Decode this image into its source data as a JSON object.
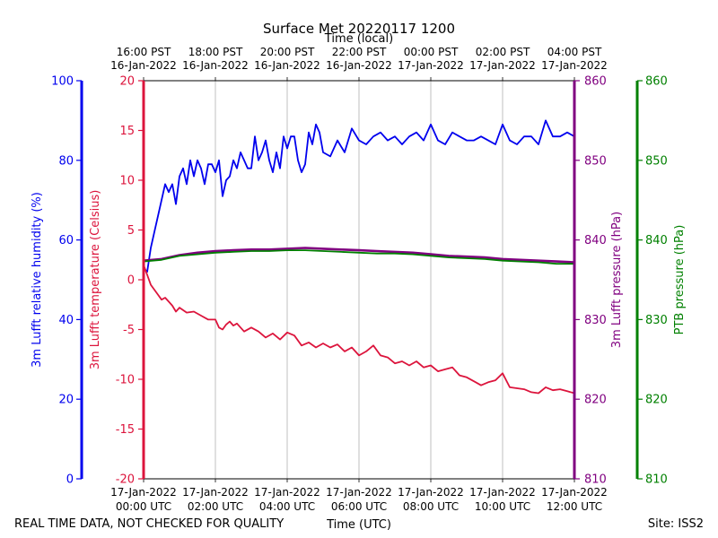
{
  "chart_data": {
    "type": "line",
    "title": "Surface Met 20220117 1200",
    "top_xlabel": "Time (local)",
    "xlabel": "Time (UTC)",
    "footer_left": "REAL TIME DATA, NOT CHECKED FOR QUALITY",
    "footer_right": "Site: ISS2",
    "x_range_hours_utc": [
      0,
      12
    ],
    "bottom_ticks": [
      {
        "hour": 0,
        "line1": "17-Jan-2022",
        "line2": "00:00 UTC"
      },
      {
        "hour": 2,
        "line1": "17-Jan-2022",
        "line2": "02:00 UTC"
      },
      {
        "hour": 4,
        "line1": "17-Jan-2022",
        "line2": "04:00 UTC"
      },
      {
        "hour": 6,
        "line1": "17-Jan-2022",
        "line2": "06:00 UTC"
      },
      {
        "hour": 8,
        "line1": "17-Jan-2022",
        "line2": "08:00 UTC"
      },
      {
        "hour": 10,
        "line1": "17-Jan-2022",
        "line2": "10:00 UTC"
      },
      {
        "hour": 12,
        "line1": "17-Jan-2022",
        "line2": "12:00 UTC"
      }
    ],
    "top_ticks": [
      {
        "hour": 0,
        "line1": "16:00 PST",
        "line2": "16-Jan-2022"
      },
      {
        "hour": 2,
        "line1": "18:00 PST",
        "line2": "16-Jan-2022"
      },
      {
        "hour": 4,
        "line1": "20:00 PST",
        "line2": "16-Jan-2022"
      },
      {
        "hour": 6,
        "line1": "22:00 PST",
        "line2": "16-Jan-2022"
      },
      {
        "hour": 8,
        "line1": "00:00 PST",
        "line2": "17-Jan-2022"
      },
      {
        "hour": 10,
        "line1": "02:00 PST",
        "line2": "17-Jan-2022"
      },
      {
        "hour": 12,
        "line1": "04:00 PST",
        "line2": "17-Jan-2022"
      }
    ],
    "axes": [
      {
        "id": "rh",
        "label": "3m Lufft relative humidity (%)",
        "color": "#0000ee",
        "range": [
          0,
          100
        ],
        "ticks": [
          0,
          20,
          40,
          60,
          80,
          100
        ]
      },
      {
        "id": "temp",
        "label": "3m Lufft temperature (Celsius)",
        "color": "#dc143c",
        "range": [
          -20,
          20
        ],
        "ticks": [
          -20,
          -15,
          -10,
          -5,
          0,
          5,
          10,
          15,
          20
        ]
      },
      {
        "id": "pres",
        "label": "3m Lufft pressure (hPa)",
        "color": "#800080",
        "range": [
          810,
          860
        ],
        "ticks": [
          810,
          820,
          830,
          840,
          850,
          860
        ]
      },
      {
        "id": "ptb",
        "label": "PTB pressure (hPa)",
        "color": "#008000",
        "range": [
          810,
          860
        ],
        "ticks": [
          810,
          820,
          830,
          840,
          850,
          860
        ]
      }
    ],
    "series": [
      {
        "name": "3m Lufft relative humidity",
        "axis": "rh",
        "color": "#0000ee",
        "x": [
          0,
          0.1,
          0.2,
          0.3,
          0.4,
          0.5,
          0.6,
          0.7,
          0.8,
          0.9,
          1.0,
          1.1,
          1.2,
          1.3,
          1.4,
          1.5,
          1.6,
          1.7,
          1.8,
          1.9,
          2.0,
          2.1,
          2.2,
          2.3,
          2.4,
          2.5,
          2.6,
          2.7,
          2.8,
          2.9,
          3.0,
          3.1,
          3.2,
          3.3,
          3.4,
          3.5,
          3.6,
          3.7,
          3.8,
          3.9,
          4.0,
          4.1,
          4.2,
          4.3,
          4.4,
          4.5,
          4.6,
          4.7,
          4.8,
          4.9,
          5.0,
          5.2,
          5.4,
          5.6,
          5.8,
          6.0,
          6.2,
          6.4,
          6.6,
          6.8,
          7.0,
          7.2,
          7.4,
          7.6,
          7.8,
          8.0,
          8.2,
          8.4,
          8.6,
          8.8,
          9.0,
          9.2,
          9.4,
          9.6,
          9.8,
          10.0,
          10.2,
          10.4,
          10.6,
          10.8,
          11.0,
          11.2,
          11.4,
          11.6,
          11.8,
          12.0
        ],
        "values": [
          53,
          52,
          58,
          62,
          66,
          70,
          74,
          72,
          74,
          69,
          76,
          78,
          74,
          80,
          76,
          80,
          78,
          74,
          79,
          79,
          77,
          80,
          71,
          75,
          76,
          80,
          78,
          82,
          80,
          78,
          78,
          86,
          80,
          82,
          85,
          80,
          77,
          82,
          78,
          86,
          83,
          86,
          86,
          80,
          77,
          79,
          87,
          84,
          89,
          87,
          82,
          81,
          85,
          82,
          88,
          85,
          84,
          86,
          87,
          85,
          86,
          84,
          86,
          87,
          85,
          89,
          85,
          84,
          87,
          86,
          85,
          85,
          86,
          85,
          84,
          89,
          85,
          84,
          86,
          86,
          84,
          90,
          86,
          86,
          87,
          86
        ]
      },
      {
        "name": "3m Lufft temperature",
        "axis": "temp",
        "color": "#dc143c",
        "x": [
          0,
          0.1,
          0.2,
          0.3,
          0.4,
          0.5,
          0.6,
          0.7,
          0.8,
          0.9,
          1.0,
          1.2,
          1.4,
          1.6,
          1.8,
          2.0,
          2.1,
          2.2,
          2.3,
          2.4,
          2.5,
          2.6,
          2.8,
          3.0,
          3.2,
          3.4,
          3.6,
          3.8,
          4.0,
          4.2,
          4.4,
          4.6,
          4.8,
          5.0,
          5.2,
          5.4,
          5.6,
          5.8,
          6.0,
          6.2,
          6.4,
          6.6,
          6.8,
          7.0,
          7.2,
          7.4,
          7.6,
          7.8,
          8.0,
          8.2,
          8.4,
          8.6,
          8.8,
          9.0,
          9.2,
          9.4,
          9.6,
          9.8,
          10.0,
          10.2,
          10.4,
          10.6,
          10.8,
          11.0,
          11.2,
          11.4,
          11.6,
          11.8,
          12.0
        ],
        "values": [
          1.5,
          0.5,
          -0.5,
          -1,
          -1.5,
          -2,
          -1.8,
          -2.2,
          -2.6,
          -3.2,
          -2.8,
          -3.3,
          -3.2,
          -3.6,
          -4,
          -4,
          -4.8,
          -5,
          -4.5,
          -4.2,
          -4.6,
          -4.4,
          -5.2,
          -4.8,
          -5.2,
          -5.8,
          -5.4,
          -6,
          -5.3,
          -5.6,
          -6.6,
          -6.3,
          -6.8,
          -6.4,
          -6.8,
          -6.5,
          -7.2,
          -6.8,
          -7.6,
          -7.2,
          -6.6,
          -7.6,
          -7.8,
          -8.4,
          -8.2,
          -8.6,
          -8.2,
          -8.8,
          -8.6,
          -9.2,
          -9,
          -8.8,
          -9.6,
          -9.8,
          -10.2,
          -10.6,
          -10.3,
          -10.1,
          -9.4,
          -10.8,
          -10.9,
          -11,
          -11.3,
          -11.4,
          -10.8,
          -11.1,
          -11.0,
          -11.2,
          -11.4
        ]
      },
      {
        "name": "3m Lufft pressure",
        "axis": "pres",
        "color": "#800080",
        "x": [
          0,
          0.5,
          1.0,
          1.5,
          2.0,
          2.5,
          3.0,
          3.5,
          4.0,
          4.5,
          5.0,
          5.5,
          6.0,
          6.5,
          7.0,
          7.5,
          8.0,
          8.5,
          9.0,
          9.5,
          10.0,
          10.5,
          11.0,
          11.5,
          12.0
        ],
        "values": [
          837.4,
          837.6,
          838.1,
          838.4,
          838.6,
          838.7,
          838.8,
          838.8,
          838.9,
          839.0,
          838.9,
          838.8,
          838.7,
          838.6,
          838.5,
          838.4,
          838.2,
          838.0,
          837.9,
          837.8,
          837.6,
          837.5,
          837.4,
          837.3,
          837.2
        ]
      },
      {
        "name": "PTB pressure",
        "axis": "ptb",
        "color": "#008000",
        "x": [
          0,
          0.5,
          1.0,
          1.5,
          2.0,
          2.5,
          3.0,
          3.5,
          4.0,
          4.5,
          5.0,
          5.5,
          6.0,
          6.5,
          7.0,
          7.5,
          8.0,
          8.5,
          9.0,
          9.5,
          10.0,
          10.5,
          11.0,
          11.5,
          12.0
        ],
        "values": [
          837.3,
          837.5,
          838.0,
          838.2,
          838.4,
          838.5,
          838.6,
          838.6,
          838.7,
          838.7,
          838.6,
          838.5,
          838.4,
          838.3,
          838.3,
          838.2,
          838.0,
          837.8,
          837.7,
          837.6,
          837.4,
          837.3,
          837.2,
          837.0,
          837.0
        ]
      }
    ]
  }
}
